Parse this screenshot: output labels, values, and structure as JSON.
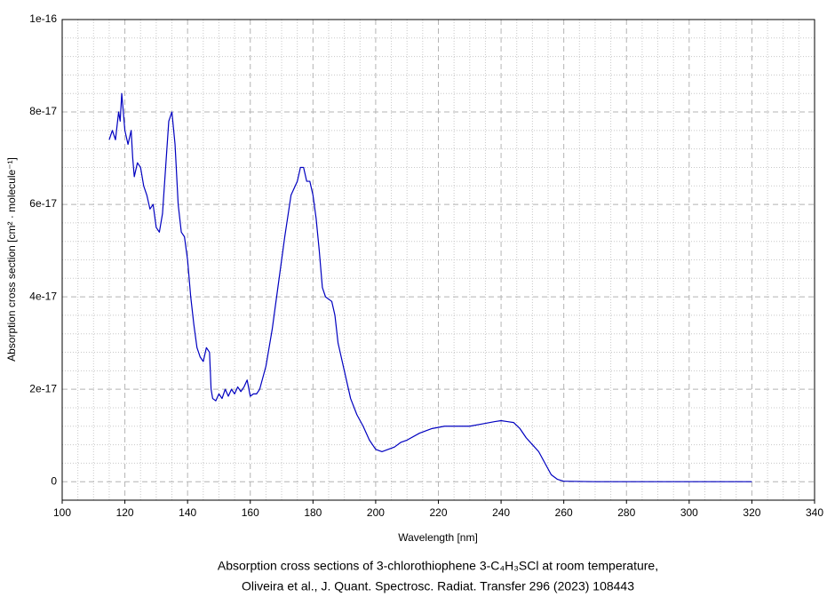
{
  "chart_data": {
    "type": "line",
    "caption": [
      "Absorption cross sections of 3-chlorothiophene 3-C₄H₃SCl at room temperature,",
      "Oliveira et al., J. Quant. Spectrosc. Radiat. Transfer 296 (2023) 108443"
    ],
    "x_label": "Wavelength [nm]",
    "y_label": "Absorption cross section [cm² · molecule⁻¹]",
    "color": "#0000c0",
    "grid": true,
    "minor_grid": true,
    "xlim": [
      100,
      340
    ],
    "xticks": [
      100,
      120,
      140,
      160,
      180,
      200,
      220,
      240,
      260,
      280,
      300,
      320,
      340
    ],
    "ylim": [
      -4e-18,
      1e-16
    ],
    "yticks": [
      0,
      2e-17,
      4e-17,
      6e-17,
      8e-17,
      1e-16
    ],
    "x": [
      115,
      116,
      117,
      118,
      118.5,
      119,
      120,
      121,
      122,
      122.5,
      123,
      124,
      125,
      126,
      127,
      128,
      129,
      130,
      131,
      132,
      133,
      134,
      135,
      136,
      137,
      138,
      139,
      140,
      141,
      142,
      143,
      144,
      145,
      146,
      147,
      147.5,
      148,
      149,
      150,
      151,
      152,
      153,
      154,
      155,
      156,
      157,
      158,
      159,
      160,
      161,
      162,
      163,
      165,
      167,
      169,
      171,
      173,
      175,
      176,
      177,
      178,
      179,
      180,
      181,
      182,
      183,
      184,
      186,
      187,
      188,
      190,
      192,
      194,
      196,
      198,
      200,
      202,
      204,
      206,
      208,
      210,
      214,
      218,
      222,
      226,
      230,
      234,
      238,
      240,
      242,
      244,
      246,
      248,
      250,
      252,
      254,
      256,
      258,
      260,
      270,
      320
    ],
    "values": [
      7.4e-17,
      7.6e-17,
      7.4e-17,
      8e-17,
      7.8e-17,
      8.4e-17,
      7.6e-17,
      7.3e-17,
      7.6e-17,
      7e-17,
      6.6e-17,
      6.9e-17,
      6.8e-17,
      6.4e-17,
      6.2e-17,
      5.9e-17,
      6e-17,
      5.5e-17,
      5.4e-17,
      5.8e-17,
      6.8e-17,
      7.8e-17,
      8e-17,
      7.3e-17,
      6e-17,
      5.4e-17,
      5.3e-17,
      4.8e-17,
      4e-17,
      3.4e-17,
      2.9e-17,
      2.7e-17,
      2.6e-17,
      2.9e-17,
      2.8e-17,
      2e-17,
      1.8e-17,
      1.75e-17,
      1.9e-17,
      1.8e-17,
      2e-17,
      1.85e-17,
      2e-17,
      1.9e-17,
      2.05e-17,
      1.95e-17,
      2.05e-17,
      2.2e-17,
      1.85e-17,
      1.9e-17,
      1.9e-17,
      2e-17,
      2.5e-17,
      3.3e-17,
      4.3e-17,
      5.3e-17,
      6.2e-17,
      6.5e-17,
      6.8e-17,
      6.8e-17,
      6.5e-17,
      6.5e-17,
      6.2e-17,
      5.7e-17,
      5e-17,
      4.2e-17,
      4e-17,
      3.9e-17,
      3.6e-17,
      3e-17,
      2.4e-17,
      1.8e-17,
      1.45e-17,
      1.2e-17,
      9e-18,
      7e-18,
      6.5e-18,
      7e-18,
      7.5e-18,
      8.5e-18,
      9e-18,
      1.05e-17,
      1.15e-17,
      1.2e-17,
      1.2e-17,
      1.2e-17,
      1.25e-17,
      1.3e-17,
      1.32e-17,
      1.3e-17,
      1.28e-17,
      1.15e-17,
      9.5e-18,
      8e-18,
      6.5e-18,
      4e-18,
      1.5e-18,
      5e-19,
      1e-19,
      0,
      0
    ]
  }
}
